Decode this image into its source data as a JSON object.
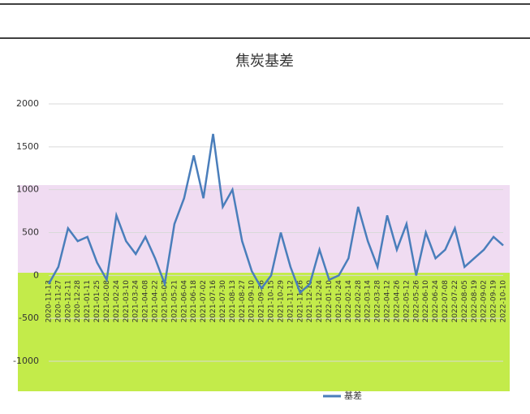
{
  "chart_data": {
    "type": "line",
    "title": "焦炭基差",
    "categories": [
      "2020-11-13",
      "2020-11-27",
      "2020-12-11",
      "2020-12-28",
      "2021-01-11",
      "2021-01-25",
      "2021-02-08",
      "2021-02-24",
      "2021-03-10",
      "2021-03-24",
      "2021-04-08",
      "2021-04-22",
      "2021-05-07",
      "2021-05-21",
      "2021-06-04",
      "2021-06-18",
      "2021-07-02",
      "2021-07-16",
      "2021-07-30",
      "2021-08-13",
      "2021-08-27",
      "2021-09-10",
      "2021-09-26",
      "2021-10-15",
      "2021-10-29",
      "2021-11-12",
      "2021-11-26",
      "2021-12-10",
      "2021-12-24",
      "2022-01-10",
      "2022-01-24",
      "2022-02-14",
      "2022-02-28",
      "2022-03-14",
      "2022-03-28",
      "2022-04-12",
      "2022-04-26",
      "2022-05-12",
      "2022-05-26",
      "2022-06-10",
      "2022-06-24",
      "2022-07-08",
      "2022-07-22",
      "2022-08-05",
      "2022-08-19",
      "2022-09-02",
      "2022-09-19",
      "2022-10-10"
    ],
    "series": [
      {
        "name": "基差",
        "color": "#4a7ebb",
        "values": [
          -100,
          100,
          550,
          400,
          450,
          150,
          -50,
          700,
          400,
          250,
          450,
          200,
          -100,
          600,
          900,
          1400,
          900,
          1650,
          800,
          1000,
          400,
          50,
          -150,
          0,
          500,
          100,
          -200,
          -100,
          300,
          -50,
          0,
          200,
          800,
          400,
          100,
          700,
          300,
          600,
          0,
          500,
          200,
          300,
          550,
          100,
          200,
          300,
          450,
          350
        ]
      }
    ],
    "ylim": [
      -1000,
      2000
    ],
    "yticks": [
      -1000,
      -500,
      0,
      500,
      1000,
      1500,
      2000
    ],
    "grid": true,
    "legend": "bottom"
  }
}
